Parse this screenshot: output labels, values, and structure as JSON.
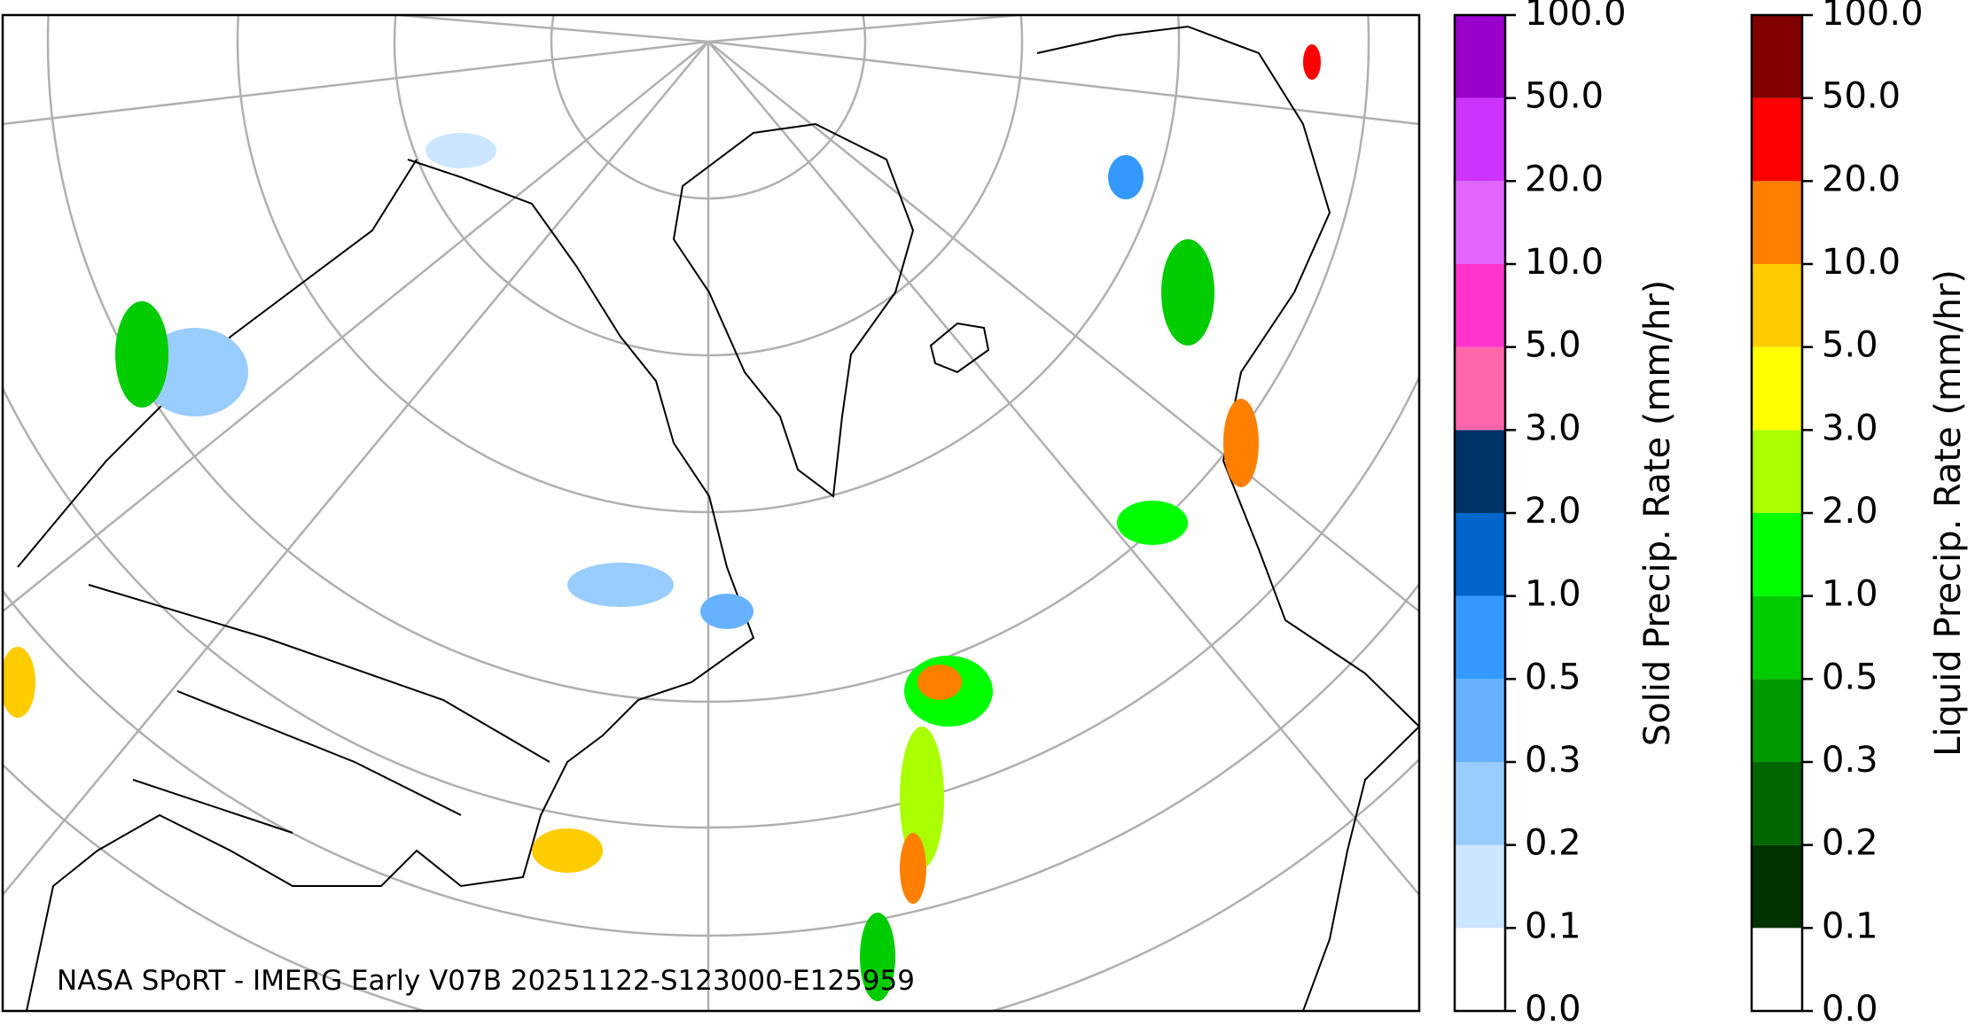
{
  "map": {
    "annotation": "NASA SPoRT - IMERG Early V07B 20251122-S123000-E125959"
  },
  "colorbars": [
    {
      "label": "Solid Precip. Rate (mm/hr)",
      "ticks": [
        {
          "value": 0,
          "label": "0.0"
        },
        {
          "value": 0.1,
          "label": "0.1"
        },
        {
          "value": 0.2,
          "label": "0.2"
        },
        {
          "value": 0.3,
          "label": "0.3"
        },
        {
          "value": 0.5,
          "label": "0.5"
        },
        {
          "value": 1,
          "label": "1.0"
        },
        {
          "value": 2,
          "label": "2.0"
        },
        {
          "value": 3,
          "label": "3.0"
        },
        {
          "value": 5,
          "label": "5.0"
        },
        {
          "value": 10,
          "label": "10.0"
        },
        {
          "value": 20,
          "label": "20.0"
        },
        {
          "value": 50,
          "label": "50.0"
        },
        {
          "value": 100,
          "label": "100.0"
        }
      ],
      "colors": [
        "#ffffff",
        "#cce6ff",
        "#99ccff",
        "#66b2ff",
        "#3399ff",
        "#0066cc",
        "#003366",
        "#ff66aa",
        "#ff33cc",
        "#e066ff",
        "#cc33ff",
        "#9900cc"
      ]
    },
    {
      "label": "Liquid Precip. Rate (mm/hr)",
      "ticks": [
        {
          "value": 0,
          "label": "0.0"
        },
        {
          "value": 0.1,
          "label": "0.1"
        },
        {
          "value": 0.2,
          "label": "0.2"
        },
        {
          "value": 0.3,
          "label": "0.3"
        },
        {
          "value": 0.5,
          "label": "0.5"
        },
        {
          "value": 1,
          "label": "1.0"
        },
        {
          "value": 2,
          "label": "2.0"
        },
        {
          "value": 3,
          "label": "3.0"
        },
        {
          "value": 5,
          "label": "5.0"
        },
        {
          "value": 10,
          "label": "10.0"
        },
        {
          "value": 20,
          "label": "20.0"
        },
        {
          "value": 50,
          "label": "50.0"
        },
        {
          "value": 100,
          "label": "100.0"
        }
      ],
      "colors": [
        "#ffffff",
        "#003300",
        "#006600",
        "#009900",
        "#00cc00",
        "#00ff00",
        "#aaff00",
        "#ffff00",
        "#ffcc00",
        "#ff8000",
        "#ff0000",
        "#800000",
        "#3d0000"
      ]
    }
  ]
}
